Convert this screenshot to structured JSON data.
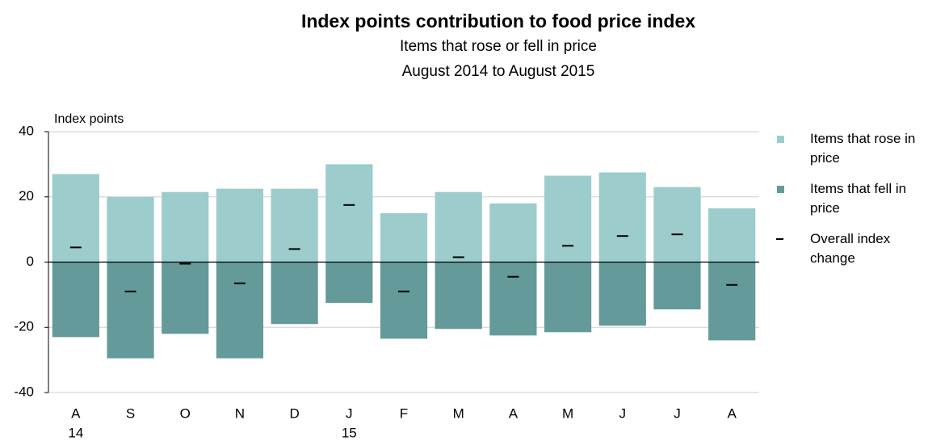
{
  "chart_data": {
    "type": "bar",
    "title": "Index points contribution to food price index",
    "subtitle": [
      "Items that rose or fell in price",
      "August 2014 to August 2015"
    ],
    "y_label": "Index points",
    "categories": [
      "A",
      "S",
      "O",
      "N",
      "D",
      "J",
      "F",
      "M",
      "A",
      "M",
      "J",
      "J",
      "A"
    ],
    "category_years": [
      "14",
      null,
      null,
      null,
      null,
      "15",
      null,
      null,
      null,
      null,
      null,
      null,
      null
    ],
    "series": [
      {
        "name": "Items that rose in price",
        "color": "#9ccccc",
        "kind": "bar",
        "values": [
          27,
          20,
          21.5,
          22.5,
          22.5,
          30,
          15,
          21.5,
          18,
          26.5,
          27.5,
          23,
          16.5
        ]
      },
      {
        "name": "Items that fell in price",
        "color": "#649a9a",
        "kind": "bar",
        "values": [
          -23,
          -29.5,
          -22,
          -29.5,
          -19,
          -12.5,
          -23.5,
          -20.5,
          -22.5,
          -21.5,
          -19.5,
          -14.5,
          -24
        ]
      },
      {
        "name": "Overall index change",
        "color": "#000000",
        "kind": "dash",
        "values": [
          4.5,
          -9,
          -0.5,
          -6.5,
          4,
          17.5,
          -9,
          1.5,
          -4.5,
          5,
          8,
          8.5,
          -7
        ]
      }
    ],
    "ylim": [
      -40,
      40
    ],
    "yticks": [
      -40,
      -20,
      0,
      20,
      40
    ],
    "grid": true
  }
}
